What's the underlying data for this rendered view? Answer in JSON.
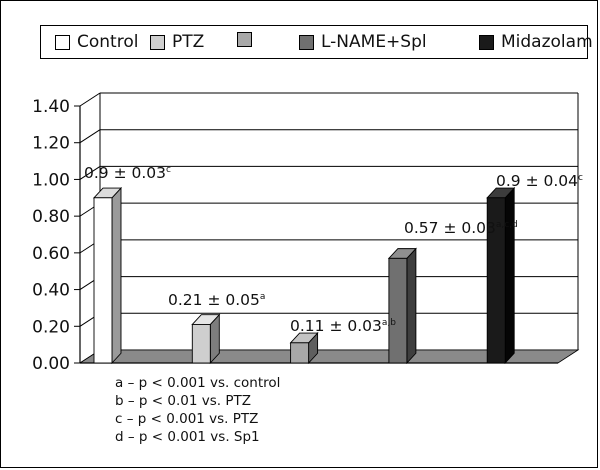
{
  "chart_data": {
    "type": "bar",
    "categories": [
      "Control",
      "PTZ",
      "",
      "L-NAME+Spl",
      "Midazolam"
    ],
    "values": [
      0.9,
      0.21,
      0.11,
      0.57,
      0.9
    ],
    "data_labels": [
      {
        "text": "0.9 ± 0.03",
        "sup": "c"
      },
      {
        "text": "0.21 ± 0.05",
        "sup": "a"
      },
      {
        "text": "0.11 ± 0.03",
        "sup": "a,b"
      },
      {
        "text": "0.57 ± 0.03",
        "sup": "a,c,d"
      },
      {
        "text": "0.9 ± 0.04",
        "sup": "c"
      }
    ],
    "ylim": [
      0,
      1.4
    ],
    "yticks": [
      "0.00",
      "0.20",
      "0.40",
      "0.60",
      "0.80",
      "1.00",
      "1.20",
      "1.40"
    ],
    "grid": true,
    "three_d": true,
    "legend_position": "top",
    "legend": [
      {
        "label": "Control",
        "color": "#ffffff"
      },
      {
        "label": "PTZ",
        "color": "#cfcfcf"
      },
      {
        "label": "",
        "color": "#a8a8a8"
      },
      {
        "label": "L-NAME+Spl",
        "color": "#707070"
      },
      {
        "label": "Midazolam",
        "color": "#1a1a1a"
      }
    ],
    "bar_colors": [
      {
        "front": "#ffffff",
        "side": "#9a9a9a",
        "top": "#dcdcdc"
      },
      {
        "front": "#cfcfcf",
        "side": "#7d7d7d",
        "top": "#e6e6e6"
      },
      {
        "front": "#a8a8a8",
        "side": "#5f5f5f",
        "top": "#c4c4c4"
      },
      {
        "front": "#707070",
        "side": "#3e3e3e",
        "top": "#8f8f8f"
      },
      {
        "front": "#1a1a1a",
        "side": "#050505",
        "top": "#3c3c3c"
      }
    ],
    "floor_color": "#8a8a8a",
    "notes": [
      "a – p < 0.001 vs. control",
      "b – p < 0.01 vs. PTZ",
      "c – p < 0.001 vs. PTZ",
      "d – p < 0.001 vs. Sp1"
    ]
  }
}
